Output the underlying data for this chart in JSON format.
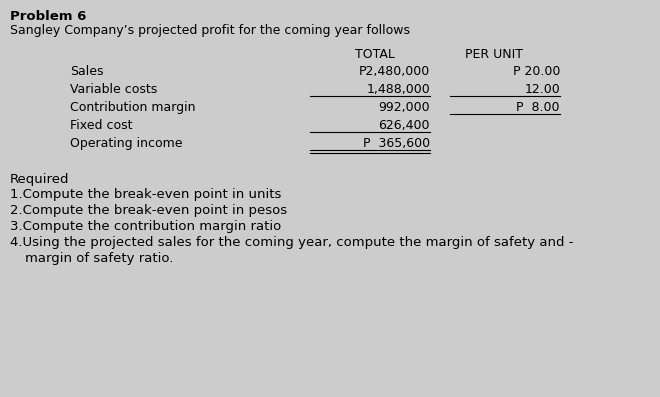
{
  "title_bold": "Problem 6",
  "subtitle": "Sangley Company’s projected profit for the coming year follows",
  "bg_color": "#cccccc",
  "col_header_total": "TOTAL",
  "col_header_per_unit": "PER UNIT",
  "rows": [
    {
      "label": "Sales",
      "total": "P2,480,000",
      "per_unit": "P 20.00",
      "ul_total": false,
      "ul_unit": false
    },
    {
      "label": "Variable costs",
      "total": "1,488,000",
      "per_unit": "12.00",
      "ul_total": true,
      "ul_unit": true
    },
    {
      "label": "Contribution margin",
      "total": "992,000",
      "per_unit": "P  8.00",
      "ul_total": false,
      "ul_unit": true
    },
    {
      "label": "Fixed cost",
      "total": "626,400",
      "per_unit": "",
      "ul_total": true,
      "ul_unit": false
    },
    {
      "label": "Operating income",
      "total": "P  365,600",
      "per_unit": "",
      "ul_total": true,
      "ul_unit": false,
      "double_ul": true
    }
  ],
  "required_label": "Required",
  "requirements": [
    "1.Compute the break-even point in units",
    "2.Compute the break-even point in pesos",
    "3.Compute the contribution margin ratio",
    "4.Using the projected sales for the coming year, compute the margin of safety and -",
    "   margin of safety ratio."
  ],
  "font_size_title": 9.5,
  "font_size_body": 9.0,
  "font_size_req": 9.5
}
